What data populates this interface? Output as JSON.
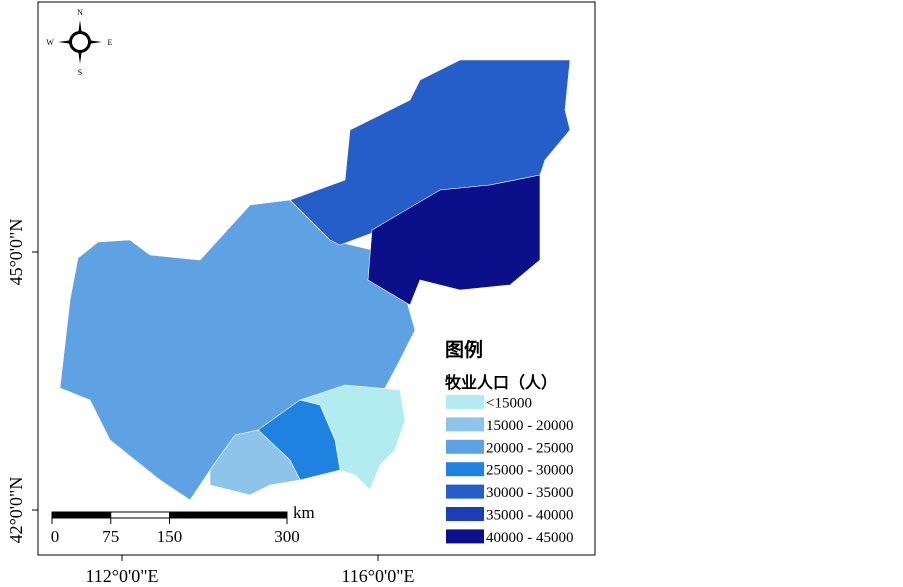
{
  "map": {
    "axes": {
      "lat_labels": [
        "45°0'0\"N",
        "42°0'0\"N"
      ],
      "lon_labels": [
        "112°0'0\"E",
        "116°0'0\"E"
      ]
    },
    "compass": {
      "n": "N",
      "s": "S",
      "e": "E",
      "w": "W"
    },
    "scale_bar": {
      "unit": "km",
      "ticks": [
        0,
        75,
        150,
        300
      ]
    },
    "legend": {
      "title": "图例",
      "subtitle": "牧业人口（人）",
      "items": [
        {
          "label": "<15000",
          "color": "#b3ecf0"
        },
        {
          "label": "15000 - 20000",
          "color": "#8fc4ea"
        },
        {
          "label": "20000 - 25000",
          "color": "#5ea2e3"
        },
        {
          "label": "25000 - 30000",
          "color": "#1f82e0"
        },
        {
          "label": "30000 - 35000",
          "color": "#255ec8"
        },
        {
          "label": "35000 - 40000",
          "color": "#1e3eb8"
        },
        {
          "label": "40000 - 45000",
          "color": "#0c0f8a"
        }
      ]
    }
  }
}
